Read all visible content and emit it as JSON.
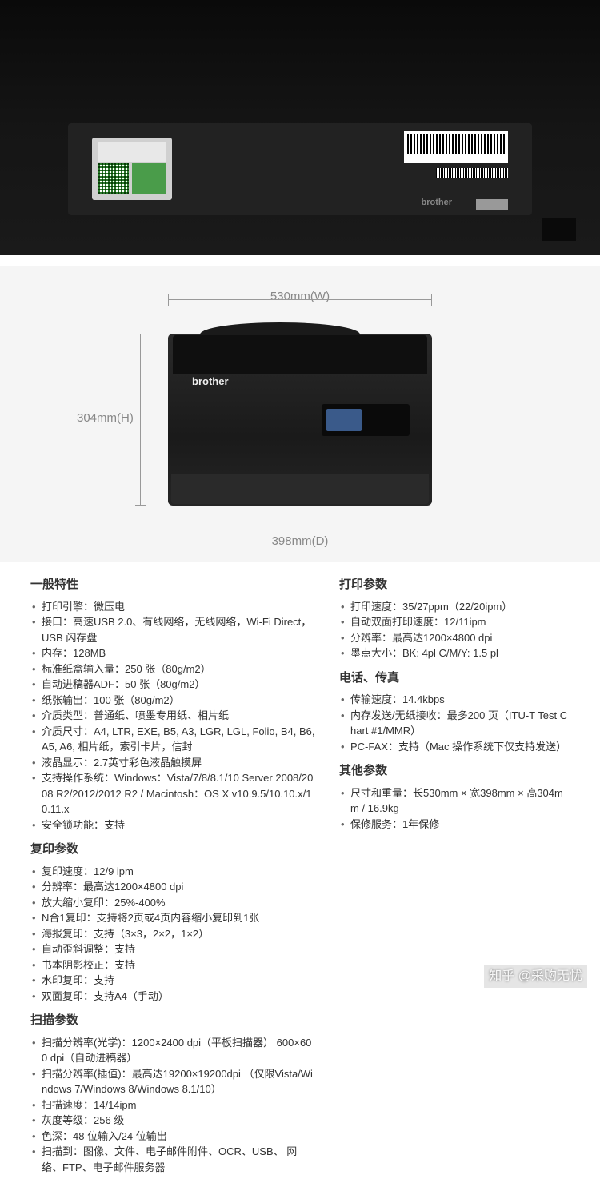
{
  "dimensions": {
    "width": "530mm(W)",
    "height": "304mm(H)",
    "depth": "398mm(D)",
    "brand": "brother",
    "bg_color": "#f5f5f5",
    "line_color": "#999999",
    "label_color": "#888888",
    "printer_color": "#1a1a1a"
  },
  "sections": {
    "general": "一般特性",
    "print": "打印参数",
    "phone_fax": "电话、传真",
    "other": "其他参数",
    "copy": "复印参数",
    "scan": "扫描参数"
  },
  "general_specs": [
    "打印引擎：微压电",
    "接口：高速USB 2.0、有线网络，无线网络，Wi-Fi Direct，USB 闪存盘",
    "内存：128MB",
    "标准纸盒输入量：250 张（80g/m2）",
    "自动进稿器ADF：50 张（80g/m2）",
    "纸张输出：100 张（80g/m2）",
    "介质类型：普通纸、喷墨专用纸、相片纸",
    "介质尺寸：A4, LTR, EXE, B5, A3, LGR, LGL, Folio, B4, B6, A5, A6, 相片纸，索引卡片，信封",
    "液晶显示：2.7英寸彩色液晶触摸屏",
    "支持操作系统：Windows：Vista/7/8/8.1/10 Server 2008/2008 R2/2012/2012 R2 / Macintosh：OS X v10.9.5/10.10.x/10.11.x",
    "安全锁功能：支持"
  ],
  "print_specs": [
    "打印速度：35/27ppm（22/20ipm）",
    "自动双面打印速度：12/11ipm",
    "分辨率：最高达1200×4800 dpi",
    "墨点大小：BK: 4pl C/M/Y: 1.5 pl"
  ],
  "phone_fax_specs": [
    "传输速度：14.4kbps",
    "内存发送/无纸接收：最多200 页（ITU-T Test Chart #1/MMR）",
    "PC-FAX：支持（Mac 操作系统下仅支持发送）"
  ],
  "other_specs": [
    "尺寸和重量：长530mm × 宽398mm × 高304mm / 16.9kg",
    "保修服务：1年保修"
  ],
  "copy_specs": [
    "复印速度：12/9 ipm",
    "分辨率：最高达1200×4800 dpi",
    "放大缩小复印：25%-400%",
    "N合1复印：支持将2页或4页内容缩小复印到1张",
    "海报复印：支持（3×3，2×2，1×2）",
    "自动歪斜调整：支持",
    "书本阴影校正：支持",
    "水印复印：支持",
    "双面复印：支持A4（手动）"
  ],
  "scan_specs": [
    "扫描分辨率(光学)：1200×2400 dpi（平板扫描器） 600×600 dpi（自动进稿器）",
    "扫描分辨率(插值)：最高达19200×19200dpi （仅限Vista/Windows 7/Windows 8/Windows 8.1/10）",
    "扫描速度：14/14ipm",
    "灰度等级：256 级",
    "色深：48 位输入/24 位输出",
    "扫描到：图像、文件、电子邮件附件、OCR、USB、 网络、FTP、电子邮件服务器"
  ],
  "watermark": "知乎 @采购无忧"
}
